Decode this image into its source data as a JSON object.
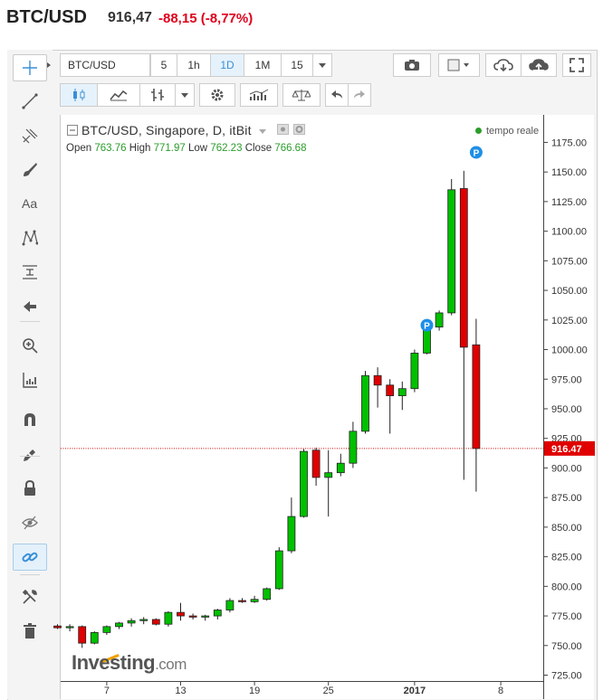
{
  "header": {
    "symbol": "BTC/USD",
    "price": "916,47",
    "change": "-88,15 (-8,77%)",
    "change_color": "#e0001b"
  },
  "toolbar": {
    "symbol_field": "BTC/USD",
    "intervals": [
      "5",
      "1h",
      "1D",
      "1M",
      "15"
    ],
    "active_interval": "1D",
    "icons": [
      "camera-icon",
      "color-square-icon",
      "cloud-download-icon",
      "cloud-upload-icon",
      "fullscreen-icon"
    ],
    "row2_icons": [
      "candles-icon",
      "indicators-icon",
      "bar-type-icon",
      "settings-icon",
      "compare-icon",
      "scale-icon",
      "undo-icon",
      "redo-icon"
    ]
  },
  "left_tools": [
    "crosshair-icon",
    "trend-line-icon",
    "pitchfork-icon",
    "brush-icon",
    "text-icon",
    "pattern-icon",
    "fib-icon",
    "arrow-icon",
    "zoom-icon",
    "measure-icon",
    "magnet-icon",
    "pencil-lock-icon",
    "lock-icon",
    "eye-off-icon",
    "link-icon",
    "wrench-icon",
    "trash-icon"
  ],
  "legend": {
    "title": "BTC/USD, Singapore, D, itBit",
    "open_label": "Open",
    "open": "763.76",
    "high_label": "High",
    "high": "771.97",
    "low_label": "Low",
    "low": "762.23",
    "close_label": "Close",
    "close": "766.68",
    "realtime": "tempo reale"
  },
  "watermark": {
    "brand": "Investing",
    "suffix": ".com"
  },
  "chart_data": {
    "type": "candlestick",
    "ylim": [
      722,
      1185
    ],
    "y_ticks": [
      725,
      750,
      775,
      800,
      825,
      850,
      875,
      900,
      925,
      950,
      975,
      1000,
      1025,
      1050,
      1075,
      1100,
      1125,
      1150,
      1175
    ],
    "y_tick_labels": [
      "725.00",
      "750.00",
      "775.00",
      "800.00",
      "825.00",
      "850.00",
      "875.00",
      "900.00",
      "925.00",
      "950.00",
      "975.00",
      "1000.00",
      "1025.00",
      "1050.00",
      "1075.00",
      "1100.00",
      "1125.00",
      "1150.00",
      "1175.00"
    ],
    "x_ticks": [
      {
        "label": "7",
        "index": 4
      },
      {
        "label": "13",
        "index": 10
      },
      {
        "label": "19",
        "index": 16
      },
      {
        "label": "25",
        "index": 22
      },
      {
        "label": "2017",
        "index": 29
      },
      {
        "label": "8",
        "index": 36
      }
    ],
    "current_price": 916.47,
    "current_price_label": "916.47",
    "up_color": "#00c000",
    "down_color": "#e00000",
    "candles": [
      {
        "o": 766.5,
        "h": 768,
        "l": 764,
        "c": 765
      },
      {
        "o": 765,
        "h": 768,
        "l": 762,
        "c": 766
      },
      {
        "o": 766,
        "h": 767,
        "l": 748,
        "c": 752
      },
      {
        "o": 752,
        "h": 762,
        "l": 751,
        "c": 761
      },
      {
        "o": 761,
        "h": 767,
        "l": 759,
        "c": 766
      },
      {
        "o": 766,
        "h": 770,
        "l": 764,
        "c": 769
      },
      {
        "o": 769,
        "h": 773,
        "l": 766,
        "c": 771
      },
      {
        "o": 771,
        "h": 774,
        "l": 768,
        "c": 772
      },
      {
        "o": 772,
        "h": 773,
        "l": 767,
        "c": 768
      },
      {
        "o": 768,
        "h": 779,
        "l": 766,
        "c": 778
      },
      {
        "o": 778,
        "h": 786,
        "l": 771,
        "c": 775
      },
      {
        "o": 775,
        "h": 777,
        "l": 772,
        "c": 774
      },
      {
        "o": 774,
        "h": 776,
        "l": 771,
        "c": 775
      },
      {
        "o": 775,
        "h": 781,
        "l": 772,
        "c": 780
      },
      {
        "o": 780,
        "h": 790,
        "l": 778,
        "c": 788
      },
      {
        "o": 788,
        "h": 790,
        "l": 786,
        "c": 787
      },
      {
        "o": 787,
        "h": 792,
        "l": 786,
        "c": 789
      },
      {
        "o": 789,
        "h": 799,
        "l": 788,
        "c": 798
      },
      {
        "o": 798,
        "h": 833,
        "l": 797,
        "c": 830
      },
      {
        "o": 830,
        "h": 875,
        "l": 828,
        "c": 859
      },
      {
        "o": 859,
        "h": 916,
        "l": 858,
        "c": 914
      },
      {
        "o": 915,
        "h": 917,
        "l": 885,
        "c": 892
      },
      {
        "o": 892,
        "h": 915,
        "l": 859,
        "c": 896
      },
      {
        "o": 896,
        "h": 912,
        "l": 893,
        "c": 904
      },
      {
        "o": 904,
        "h": 939,
        "l": 900,
        "c": 931
      },
      {
        "o": 931,
        "h": 982,
        "l": 929,
        "c": 978
      },
      {
        "o": 978,
        "h": 985,
        "l": 951,
        "c": 970
      },
      {
        "o": 970,
        "h": 975,
        "l": 929,
        "c": 961
      },
      {
        "o": 961,
        "h": 973,
        "l": 949,
        "c": 967
      },
      {
        "o": 967,
        "h": 1000,
        "l": 964,
        "c": 997
      },
      {
        "o": 997,
        "h": 1024,
        "l": 996,
        "c": 1019
      },
      {
        "o": 1019,
        "h": 1033,
        "l": 1016,
        "c": 1031
      },
      {
        "o": 1031,
        "h": 1144,
        "l": 1029,
        "c": 1135
      },
      {
        "o": 1136,
        "h": 1151,
        "l": 890,
        "c": 1002
      },
      {
        "o": 1004,
        "h": 1026,
        "l": 880,
        "c": 916.47
      }
    ],
    "markers": [
      {
        "label": "P",
        "index": 30,
        "value": 1016
      },
      {
        "label": "P",
        "index": 34,
        "value": 1162
      }
    ]
  }
}
